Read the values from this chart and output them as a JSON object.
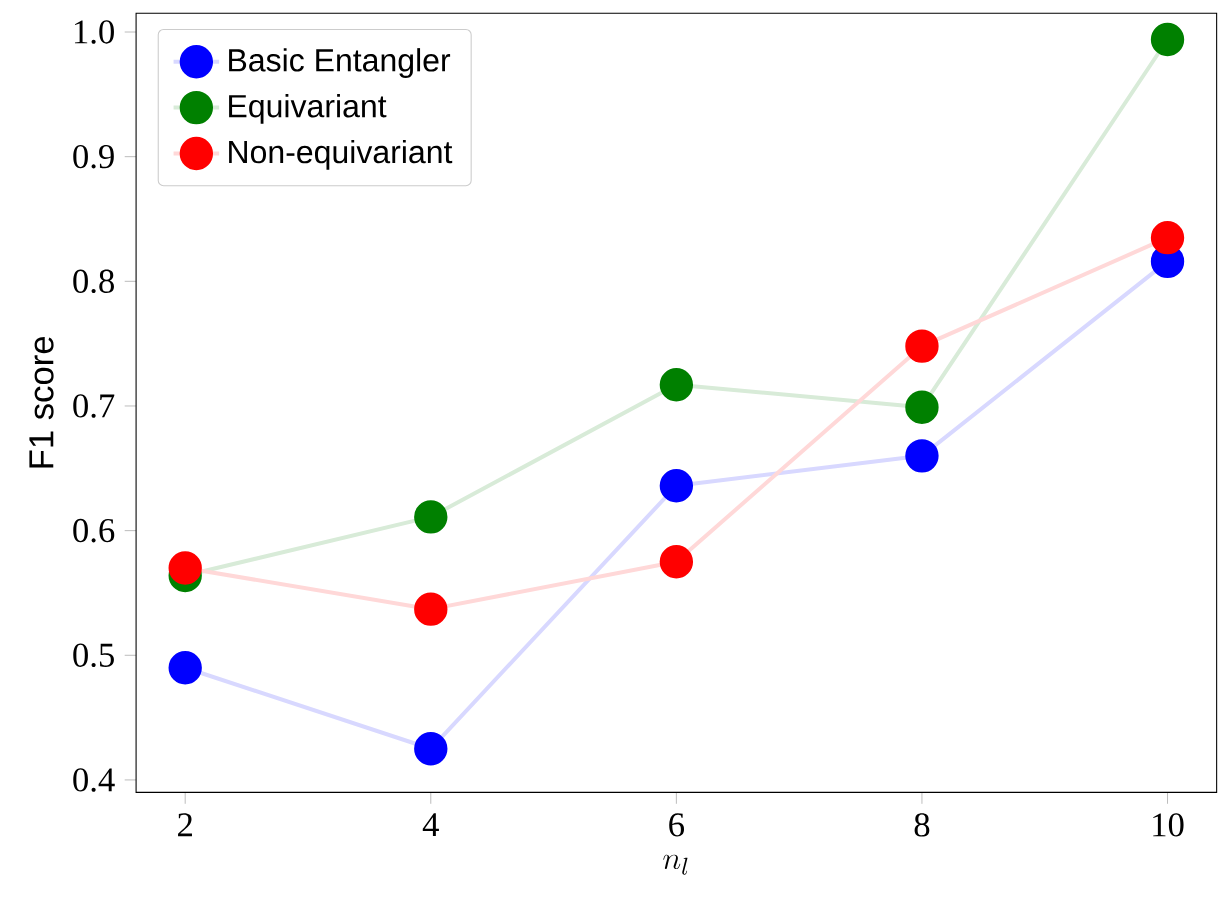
{
  "chart_data": {
    "type": "line",
    "xlabel": "n_l",
    "ylabel": "F1 score",
    "x": [
      2,
      4,
      6,
      8,
      10
    ],
    "series": [
      {
        "name": "Basic Entangler",
        "color": "#0000ff",
        "values": [
          0.49,
          0.425,
          0.636,
          0.66,
          0.816
        ]
      },
      {
        "name": "Equivariant",
        "color": "#008000",
        "values": [
          0.564,
          0.611,
          0.717,
          0.699,
          0.994
        ]
      },
      {
        "name": "Non-equivariant",
        "color": "#ff0000",
        "values": [
          0.57,
          0.537,
          0.575,
          0.748,
          0.835
        ]
      }
    ],
    "xlim": [
      1.6,
      10.4
    ],
    "ylim": [
      0.39,
      1.015
    ],
    "xticks": [
      2,
      4,
      6,
      8,
      10
    ],
    "yticks": [
      0.4,
      0.5,
      0.6,
      0.7,
      0.8,
      0.9,
      {
        "value": 1.0,
        "label": "1.0"
      }
    ],
    "legend": "top left",
    "marker": "circle",
    "grid": false
  }
}
